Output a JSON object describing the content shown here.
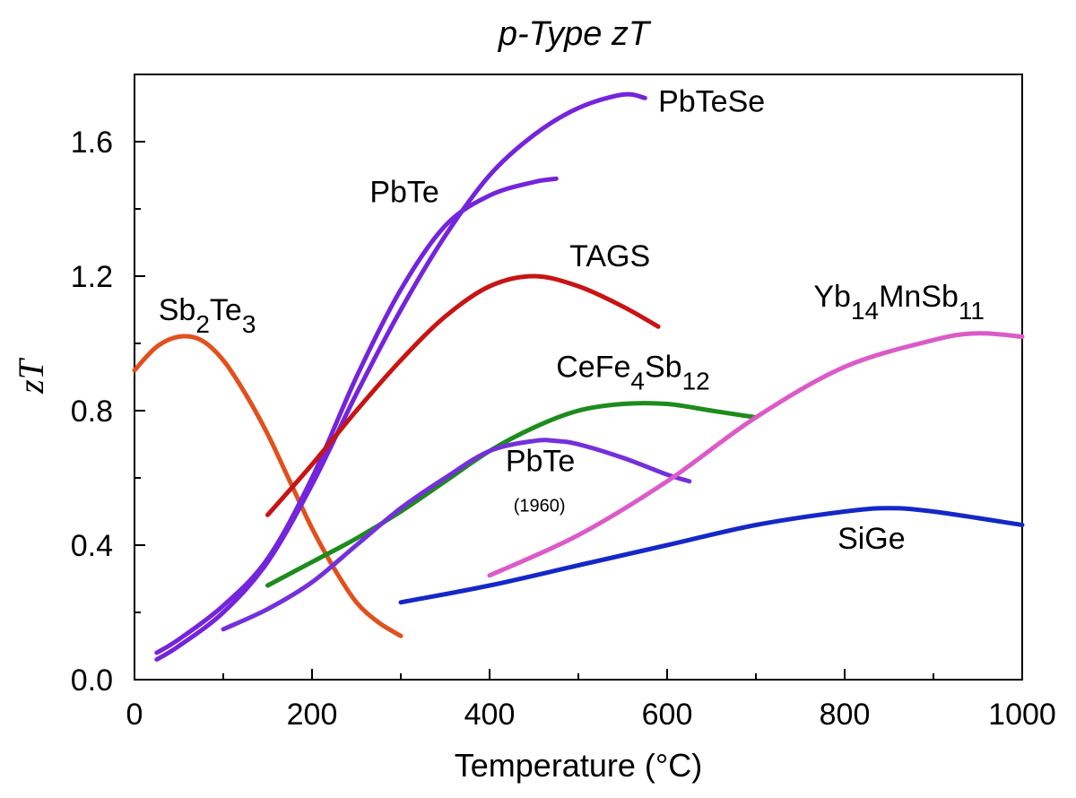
{
  "chart_data": {
    "type": "line",
    "title": "p-Type  zT",
    "xlabel": "Temperature (°C)",
    "ylabel": "zT",
    "xlim": [
      0,
      1000
    ],
    "ylim": [
      0,
      1.8
    ],
    "xticks": [
      "0",
      "200",
      "400",
      "600",
      "800",
      "1000"
    ],
    "yticks": [
      "0.0",
      "0.4",
      "0.8",
      "1.2",
      "1.6"
    ],
    "grid": false,
    "legend": "inline labels",
    "series": [
      {
        "name": "Sb2Te3",
        "color": "#e2501c",
        "x": [
          0,
          25,
          50,
          75,
          100,
          125,
          150,
          175,
          200,
          225,
          250,
          275,
          300
        ],
        "y": [
          0.92,
          0.99,
          1.02,
          1.01,
          0.95,
          0.85,
          0.73,
          0.59,
          0.45,
          0.33,
          0.23,
          0.17,
          0.13
        ]
      },
      {
        "name": "PbTeSe",
        "color": "#7424dc",
        "x": [
          25,
          50,
          100,
          150,
          200,
          250,
          300,
          350,
          400,
          450,
          500,
          550,
          575
        ],
        "y": [
          0.06,
          0.1,
          0.2,
          0.35,
          0.58,
          0.85,
          1.1,
          1.32,
          1.5,
          1.62,
          1.7,
          1.74,
          1.73
        ]
      },
      {
        "name": "PbTe",
        "color": "#7424dc",
        "x": [
          25,
          50,
          100,
          150,
          200,
          250,
          300,
          350,
          400,
          450,
          475
        ],
        "y": [
          0.08,
          0.12,
          0.22,
          0.36,
          0.6,
          0.9,
          1.16,
          1.35,
          1.44,
          1.48,
          1.49
        ]
      },
      {
        "name": "TAGS",
        "color": "#c81414",
        "x": [
          150,
          200,
          250,
          300,
          350,
          400,
          450,
          500,
          550,
          590
        ],
        "y": [
          0.49,
          0.64,
          0.8,
          0.95,
          1.08,
          1.17,
          1.2,
          1.17,
          1.11,
          1.05
        ]
      },
      {
        "name": "CeFe4Sb12",
        "color": "#1c8c1c",
        "x": [
          150,
          200,
          250,
          300,
          350,
          400,
          450,
          500,
          550,
          600,
          650,
          700
        ],
        "y": [
          0.28,
          0.35,
          0.42,
          0.5,
          0.59,
          0.68,
          0.75,
          0.8,
          0.82,
          0.82,
          0.8,
          0.78
        ]
      },
      {
        "name": "PbTe (1960)",
        "color": "#7430dc",
        "x": [
          100,
          150,
          200,
          250,
          300,
          350,
          400,
          450,
          475,
          500,
          550,
          600,
          625
        ],
        "y": [
          0.15,
          0.21,
          0.29,
          0.4,
          0.51,
          0.6,
          0.68,
          0.71,
          0.71,
          0.7,
          0.66,
          0.61,
          0.59
        ]
      },
      {
        "name": "Yb14MnSb11",
        "color": "#dc5ac8",
        "x": [
          400,
          500,
          600,
          700,
          800,
          900,
          950,
          1000
        ],
        "y": [
          0.31,
          0.43,
          0.59,
          0.78,
          0.93,
          1.01,
          1.03,
          1.02
        ]
      },
      {
        "name": "SiGe",
        "color": "#1428c8",
        "x": [
          300,
          400,
          500,
          600,
          700,
          800,
          850,
          900,
          1000
        ],
        "y": [
          0.23,
          0.28,
          0.34,
          0.4,
          0.46,
          0.5,
          0.51,
          0.5,
          0.46
        ]
      }
    ],
    "labels": [
      {
        "main": "PbTeSe",
        "x": 590,
        "y": 1.69
      },
      {
        "main": "PbTe",
        "x": 265,
        "y": 1.42
      },
      {
        "main": "TAGS",
        "x": 490,
        "y": 1.23
      },
      {
        "main": "Sb",
        "sub1": "2",
        "mid": "Te",
        "sub2": "3",
        "x": 27,
        "y": 1.07
      },
      {
        "main": "Yb",
        "sub1": "14",
        "mid": "MnSb",
        "sub2": "11",
        "x": 765,
        "y": 1.11
      },
      {
        "main": "CeFe",
        "sub1": "4",
        "mid": "Sb",
        "sub2": "12",
        "x": 475,
        "y": 0.9
      },
      {
        "main": "PbTe",
        "x": 418,
        "y": 0.62,
        "note": "(1960)",
        "note_x": 427,
        "note_y": 0.5
      },
      {
        "main": "SiGe",
        "x": 792,
        "y": 0.39
      }
    ]
  }
}
